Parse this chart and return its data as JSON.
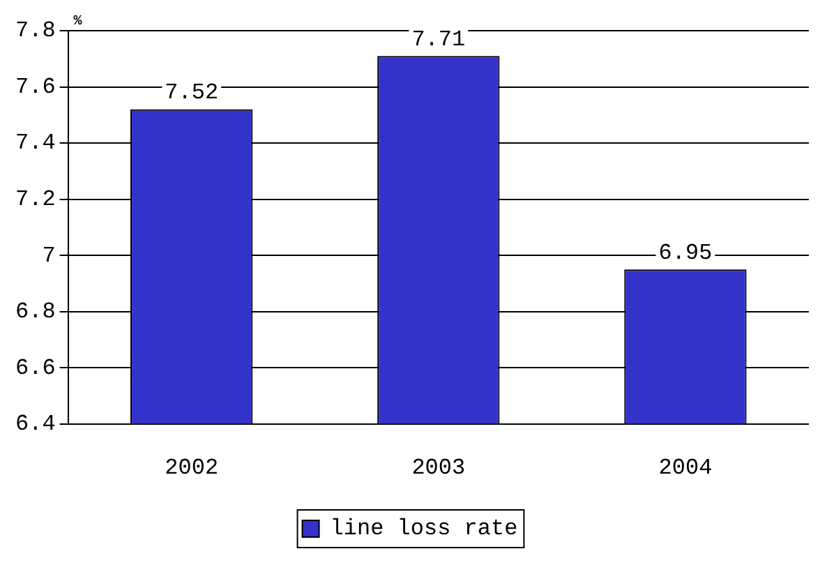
{
  "chart_data": {
    "type": "bar",
    "ylabel": "%",
    "categories": [
      "2002",
      "2003",
      "2004"
    ],
    "series": [
      {
        "name": "line loss rate",
        "color": "#3333cc",
        "values": [
          7.52,
          7.71,
          6.95
        ]
      }
    ],
    "ylim": [
      6.4,
      7.8
    ],
    "yticks": [
      6.4,
      6.6,
      6.8,
      7,
      7.2,
      7.4,
      7.6,
      7.8
    ],
    "grid": "y",
    "legend": "bottom",
    "data_labels": true
  }
}
